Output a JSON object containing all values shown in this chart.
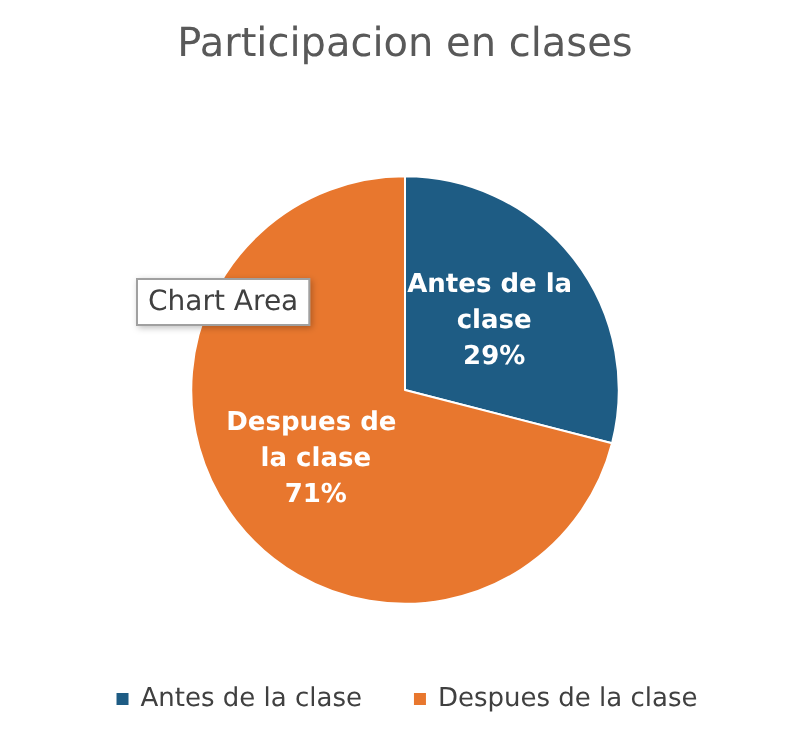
{
  "chart_data": {
    "type": "pie",
    "title": "Participacion en clases",
    "categories": [
      "Antes de la clase",
      "Despues de la clase"
    ],
    "values": [
      29,
      71
    ],
    "value_labels": [
      "29%",
      "71%"
    ],
    "colors": [
      "#1e5c84",
      "#e8772e"
    ],
    "legend": "bottom",
    "annotations": [
      "Chart Area"
    ]
  }
}
